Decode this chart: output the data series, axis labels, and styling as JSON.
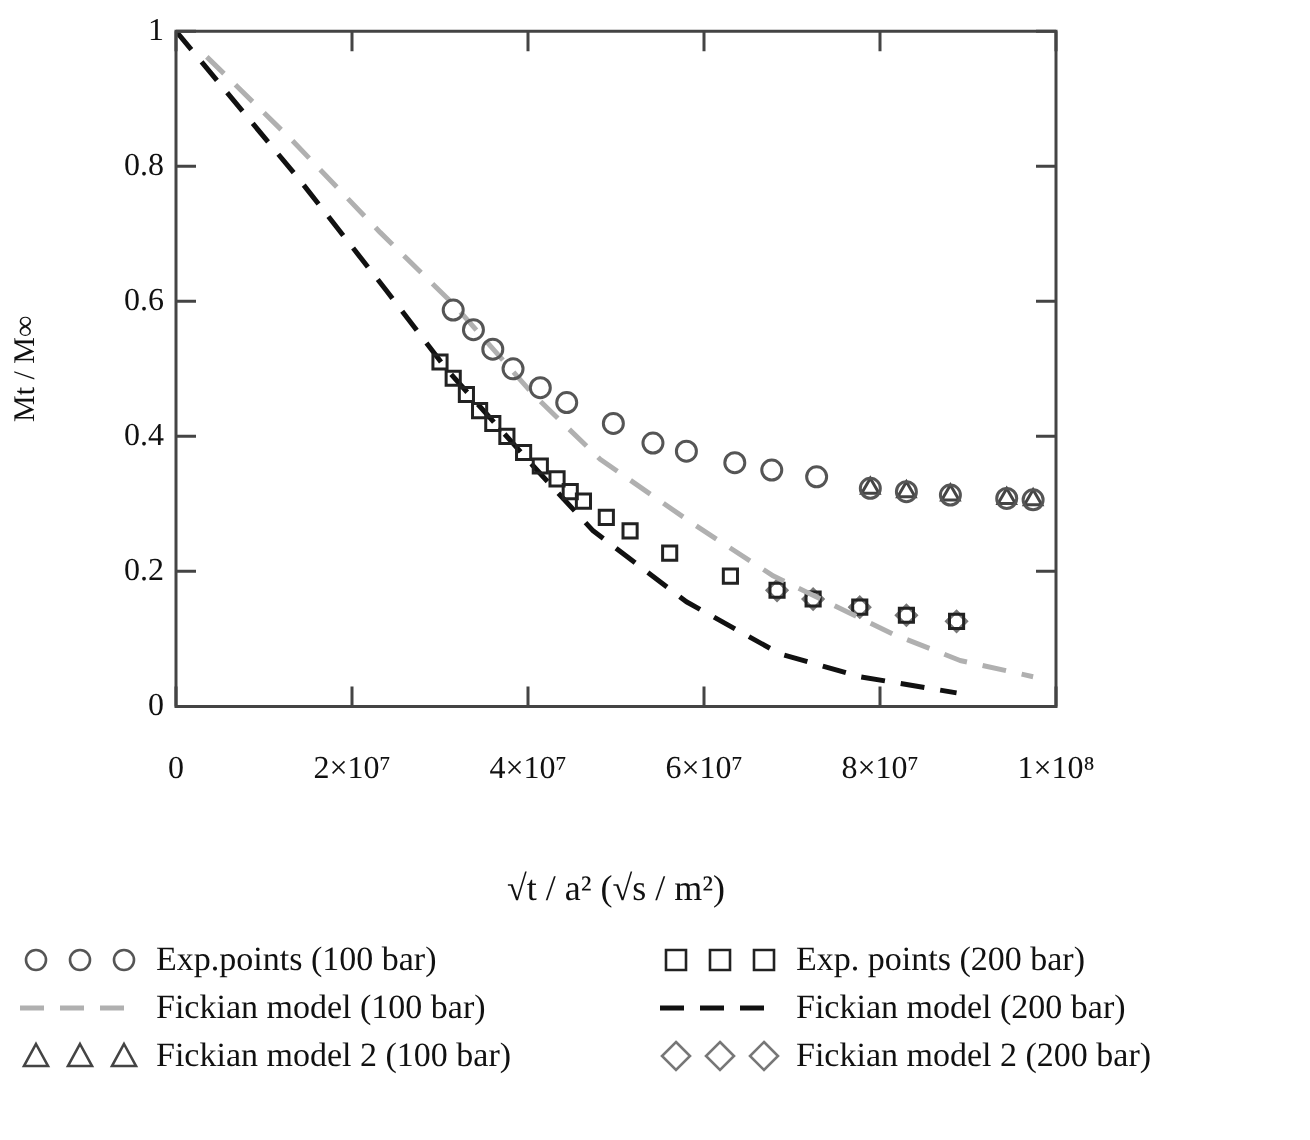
{
  "chart_data": {
    "type": "scatter",
    "xlabel": "√t / a² (√s / m²)",
    "ylabel": "Mt / M∞",
    "xlim": [
      0,
      100000000
    ],
    "ylim": [
      0,
      1
    ],
    "xticks": [
      0,
      {
        "value": 20000000,
        "label": "2×10⁷"
      },
      {
        "value": 40000000,
        "label": "4×10⁷"
      },
      {
        "value": 60000000,
        "label": "6×10⁷"
      },
      {
        "value": 80000000,
        "label": "8×10⁷"
      },
      {
        "value": 100000000,
        "label": "1×10⁸"
      }
    ],
    "yticks": [
      0,
      0.2,
      0.4,
      0.6,
      0.8,
      1
    ],
    "grid": false,
    "legend": "bottom",
    "series": [
      {
        "name": "Exp.points (100 bar)",
        "type": "scatter",
        "marker": "circle",
        "color": "#555555",
        "x": [
          31500000,
          33800000,
          36000000,
          38300000,
          41400000,
          44400000,
          49700000,
          54200000,
          58000000,
          63500000,
          67700000,
          72800000,
          78900000,
          83000000,
          88000000,
          94400000,
          97400000
        ],
        "values": [
          0.587,
          0.558,
          0.529,
          0.5,
          0.472,
          0.45,
          0.419,
          0.39,
          0.378,
          0.361,
          0.35,
          0.34,
          0.323,
          0.318,
          0.313,
          0.308,
          0.306
        ]
      },
      {
        "name": "Fickian model (100 bar)",
        "type": "line",
        "marker": "none",
        "line_style": "dashed",
        "color": "#b0b0b0",
        "x": [
          3500000,
          13300000,
          23200000,
          31500000,
          40600000,
          48200000,
          58800000,
          67900000,
          73900000,
          81500000,
          89100000,
          97400000
        ],
        "values": [
          0.962,
          0.837,
          0.702,
          0.596,
          0.462,
          0.366,
          0.27,
          0.193,
          0.155,
          0.107,
          0.068,
          0.044
        ]
      },
      {
        "name": "Fickian model 2 (100 bar)",
        "type": "scatter",
        "marker": "triangle",
        "color": "#444444",
        "x": [
          78900000,
          83000000,
          88000000,
          94400000,
          97400000
        ],
        "values": [
          0.323,
          0.318,
          0.313,
          0.308,
          0.306
        ]
      },
      {
        "name": "Exp. points (200 bar)",
        "type": "scatter",
        "marker": "square",
        "color": "#222222",
        "x": [
          30000000,
          31500000,
          33000000,
          34500000,
          36000000,
          37600000,
          39500000,
          41400000,
          43300000,
          44800000,
          46300000,
          48900000,
          51600000,
          56100000,
          63000000,
          68300000,
          72400000,
          77700000,
          83000000,
          88700000
        ],
        "values": [
          0.51,
          0.486,
          0.462,
          0.438,
          0.419,
          0.4,
          0.376,
          0.356,
          0.337,
          0.318,
          0.304,
          0.28,
          0.26,
          0.227,
          0.193,
          0.172,
          0.159,
          0.147,
          0.135,
          0.126
        ]
      },
      {
        "name": "Fickian model (200 bar)",
        "type": "line",
        "marker": "none",
        "line_style": "dashed",
        "color": "#111111",
        "x": [
          0,
          14100000,
          23900000,
          30700000,
          40600000,
          47400000,
          58000000,
          68600000,
          77700000,
          88700000
        ],
        "values": [
          1,
          0.779,
          0.616,
          0.5,
          0.356,
          0.26,
          0.155,
          0.078,
          0.044,
          0.02
        ]
      },
      {
        "name": "Fickian model 2 (200 bar)",
        "type": "scatter",
        "marker": "diamond",
        "color": "#777777",
        "x": [
          68300000,
          72400000,
          77700000,
          83000000,
          88700000
        ],
        "values": [
          0.172,
          0.159,
          0.147,
          0.135,
          0.126
        ]
      }
    ]
  }
}
